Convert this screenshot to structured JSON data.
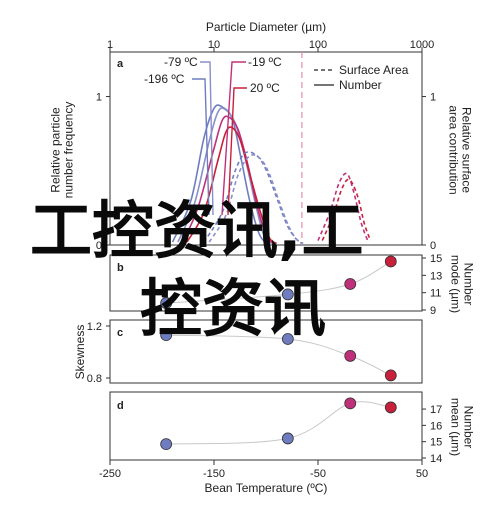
{
  "chart_data": [
    {
      "panel": "a",
      "type": "line",
      "top_axis": {
        "label": "Particle Diameter (µm)",
        "scale": "log",
        "range": [
          1,
          1000
        ],
        "ticks": [
          "1",
          "10",
          "100",
          "1000"
        ]
      },
      "ylabel_left": "Relative particle\nnumber frequency",
      "ylabel_right": "Relative surface\narea contribution",
      "yticks_left": [
        "0",
        "1"
      ],
      "yticks_right": [
        "0",
        "1"
      ],
      "ylim": [
        0,
        1.3
      ],
      "legend": {
        "placement": "top-right",
        "entries": [
          {
            "label": "Surface Area",
            "style": "dashed"
          },
          {
            "label": "Number",
            "style": "solid"
          }
        ]
      },
      "annotations": [
        {
          "text": "-79 ºC",
          "color": "#8a8fc9"
        },
        {
          "text": "-196 ºC",
          "color": "#6f7dc0"
        },
        {
          "text": "-19 ºC",
          "color": "#c0307a"
        },
        {
          "text": "20 ºC",
          "color": "#c8203a"
        }
      ],
      "reference_line": {
        "x": 70,
        "color": "#e98aa8",
        "style": "dashed"
      },
      "series": [
        {
          "name": "-196 ºC",
          "color": "#6f7dc0",
          "kind": "number",
          "x": [
            4,
            6,
            8,
            10,
            12,
            15,
            18,
            22,
            27,
            32
          ],
          "y": [
            0.02,
            0.3,
            0.72,
            0.92,
            0.93,
            0.85,
            0.6,
            0.3,
            0.08,
            0.01
          ]
        },
        {
          "name": "-79 ºC",
          "color": "#8a8fc9",
          "kind": "number",
          "x": [
            4.5,
            6.5,
            9,
            11,
            13,
            16,
            20,
            25,
            30,
            36
          ],
          "y": [
            0.02,
            0.28,
            0.7,
            0.9,
            0.91,
            0.82,
            0.58,
            0.28,
            0.07,
            0.01
          ]
        },
        {
          "name": "-19 ºC",
          "color": "#c0307a",
          "kind": "number",
          "x": [
            5,
            7,
            10,
            12,
            14,
            17,
            21,
            26,
            32,
            38
          ],
          "y": [
            0.02,
            0.25,
            0.65,
            0.84,
            0.86,
            0.78,
            0.55,
            0.26,
            0.06,
            0.01
          ]
        },
        {
          "name": "20 ºC",
          "color": "#c8203a",
          "kind": "number",
          "x": [
            5.5,
            8,
            11,
            13,
            15,
            18,
            22,
            28,
            34,
            40
          ],
          "y": [
            0.02,
            0.22,
            0.58,
            0.76,
            0.79,
            0.7,
            0.48,
            0.22,
            0.05,
            0.01
          ]
        },
        {
          "name": "-196 ºC",
          "color": "#6f7dc0",
          "kind": "surface",
          "x": [
            8,
            12,
            16,
            20,
            26,
            32,
            40,
            50,
            60,
            70
          ],
          "y": [
            0.02,
            0.22,
            0.5,
            0.62,
            0.6,
            0.5,
            0.32,
            0.14,
            0.05,
            0.01
          ]
        },
        {
          "name": "-79 ºC",
          "color": "#8a8fc9",
          "kind": "surface",
          "x": [
            9,
            13,
            17,
            22,
            28,
            34,
            42,
            52,
            62,
            72
          ],
          "y": [
            0.02,
            0.2,
            0.47,
            0.6,
            0.58,
            0.48,
            0.3,
            0.13,
            0.04,
            0.01
          ]
        },
        {
          "name": "-19 ºC",
          "color": "#c0307a",
          "kind": "surface",
          "x": [
            100,
            130,
            160,
            190,
            220,
            260,
            300
          ],
          "y": [
            0.03,
            0.22,
            0.42,
            0.48,
            0.36,
            0.15,
            0.03
          ]
        },
        {
          "name": "20 ºC",
          "color": "#c8203a",
          "kind": "surface",
          "x": [
            110,
            140,
            170,
            200,
            240,
            280,
            320
          ],
          "y": [
            0.03,
            0.2,
            0.38,
            0.44,
            0.33,
            0.14,
            0.03
          ]
        }
      ]
    },
    {
      "panel": "b",
      "type": "scatter",
      "ylabel_right": "Number\nmode (µm)",
      "yticks_right": [
        "9",
        "11",
        "13",
        "15"
      ],
      "ylim": [
        9,
        15
      ],
      "points": [
        {
          "x": -196,
          "y": 9.8,
          "color": "#6f7dc0"
        },
        {
          "x": -79,
          "y": 10.8,
          "color": "#6f7dc0"
        },
        {
          "x": -19,
          "y": 12.0,
          "color": "#c0307a"
        },
        {
          "x": 20,
          "y": 14.6,
          "color": "#c8203a"
        }
      ]
    },
    {
      "panel": "c",
      "type": "scatter",
      "ylabel_left": "Skewness",
      "yticks_left": [
        "0.8",
        "1.2"
      ],
      "ylim": [
        0.8,
        1.2
      ],
      "points": [
        {
          "x": -196,
          "y": 1.13,
          "color": "#6f7dc0"
        },
        {
          "x": -79,
          "y": 1.1,
          "color": "#6f7dc0"
        },
        {
          "x": -19,
          "y": 0.97,
          "color": "#c0307a"
        },
        {
          "x": 20,
          "y": 0.82,
          "color": "#c8203a"
        }
      ]
    },
    {
      "panel": "d",
      "type": "scatter",
      "ylabel_right": "Number\nmean (µm)",
      "yticks_right": [
        "14",
        "15",
        "16",
        "17"
      ],
      "ylim": [
        14,
        17.8
      ],
      "xlabel": "Bean Temperature (ºC)",
      "xticks": [
        "-250",
        "-150",
        "-50",
        "50"
      ],
      "xlim": [
        -250,
        50
      ],
      "points": [
        {
          "x": -196,
          "y": 14.85,
          "color": "#6f7dc0"
        },
        {
          "x": -79,
          "y": 15.2,
          "color": "#6f7dc0"
        },
        {
          "x": -19,
          "y": 17.35,
          "color": "#c0307a"
        },
        {
          "x": 20,
          "y": 17.1,
          "color": "#c8203a"
        }
      ]
    }
  ],
  "watermark": {
    "line1": "工控资讯,工",
    "line2": "控资讯"
  }
}
